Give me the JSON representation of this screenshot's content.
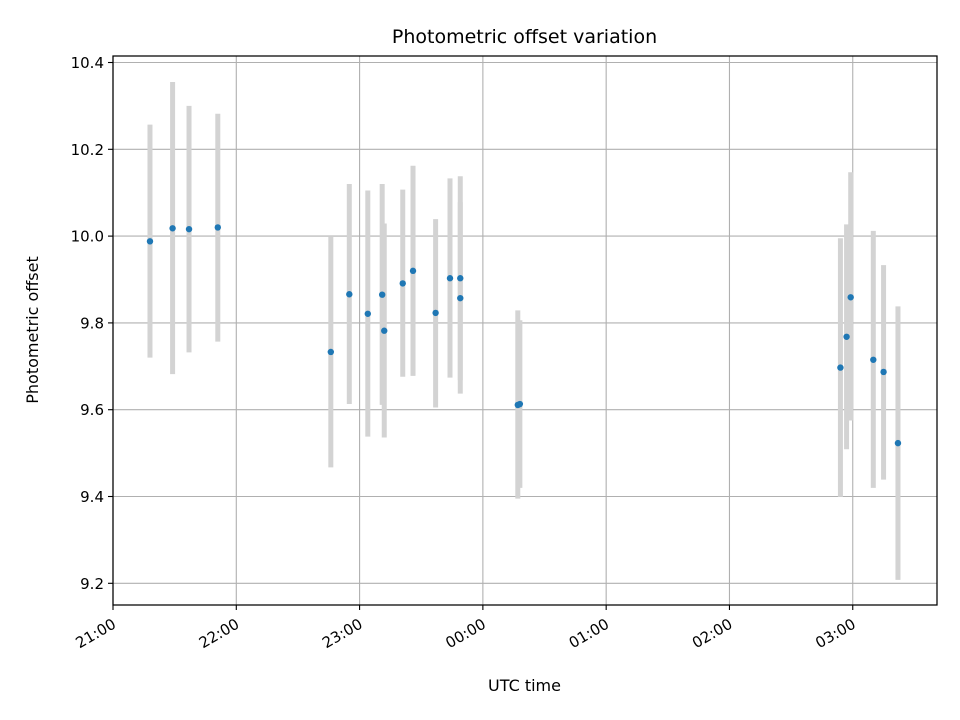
{
  "chart_data": {
    "type": "scatter",
    "title": "Photometric offset variation",
    "xlabel": "UTC time",
    "ylabel": "Photometric offset",
    "x_unit": "UTC time (hh:mm), 21:00 through 03:40 next day",
    "xlim": [
      "21:00",
      "03:41"
    ],
    "ylim": [
      9.15,
      10.415
    ],
    "grid": true,
    "x_ticks": [
      "21:00",
      "22:00",
      "23:00",
      "00:00",
      "01:00",
      "02:00",
      "03:00"
    ],
    "y_ticks": [
      "9.2",
      "9.4",
      "9.6",
      "9.8",
      "10.0",
      "10.2",
      "10.4"
    ],
    "marker_color": "#1f77b4",
    "errorbar_color": "#d3d3d3",
    "points": [
      {
        "t": "21:18",
        "y": 9.988,
        "ylo": 9.72,
        "yhi": 10.257
      },
      {
        "t": "21:29",
        "y": 10.018,
        "ylo": 9.682,
        "yhi": 10.355
      },
      {
        "t": "21:37",
        "y": 10.016,
        "ylo": 9.732,
        "yhi": 10.3
      },
      {
        "t": "21:51",
        "y": 10.02,
        "ylo": 9.757,
        "yhi": 10.282
      },
      {
        "t": "22:46",
        "y": 9.733,
        "ylo": 9.467,
        "yhi": 9.998
      },
      {
        "t": "22:55",
        "y": 9.866,
        "ylo": 9.613,
        "yhi": 10.12
      },
      {
        "t": "23:04",
        "y": 9.821,
        "ylo": 9.538,
        "yhi": 10.105
      },
      {
        "t": "23:11",
        "y": 9.865,
        "ylo": 9.611,
        "yhi": 10.12
      },
      {
        "t": "23:12",
        "y": 9.782,
        "ylo": 9.536,
        "yhi": 10.029
      },
      {
        "t": "23:21",
        "y": 9.891,
        "ylo": 9.676,
        "yhi": 10.107
      },
      {
        "t": "23:26",
        "y": 9.92,
        "ylo": 9.678,
        "yhi": 10.162
      },
      {
        "t": "23:37",
        "y": 9.823,
        "ylo": 9.605,
        "yhi": 10.039
      },
      {
        "t": "23:44",
        "y": 9.903,
        "ylo": 9.674,
        "yhi": 10.133
      },
      {
        "t": "23:49",
        "y": 9.903,
        "ylo": 9.668,
        "yhi": 10.138
      },
      {
        "t": "23:49",
        "y": 9.857,
        "ylo": 9.637,
        "yhi": 10.078
      },
      {
        "t": "00:17",
        "y": 9.611,
        "ylo": 9.395,
        "yhi": 9.829
      },
      {
        "t": "00:18",
        "y": 9.613,
        "ylo": 9.42,
        "yhi": 9.806
      },
      {
        "t": "02:54",
        "y": 9.697,
        "ylo": 9.399,
        "yhi": 9.995
      },
      {
        "t": "02:57",
        "y": 9.768,
        "ylo": 9.509,
        "yhi": 10.027
      },
      {
        "t": "02:59",
        "y": 9.859,
        "ylo": 9.575,
        "yhi": 10.147
      },
      {
        "t": "03:10",
        "y": 9.715,
        "ylo": 9.42,
        "yhi": 10.012
      },
      {
        "t": "03:15",
        "y": 9.687,
        "ylo": 9.439,
        "yhi": 9.933
      },
      {
        "t": "03:22",
        "y": 9.523,
        "ylo": 9.208,
        "yhi": 9.838
      }
    ]
  }
}
